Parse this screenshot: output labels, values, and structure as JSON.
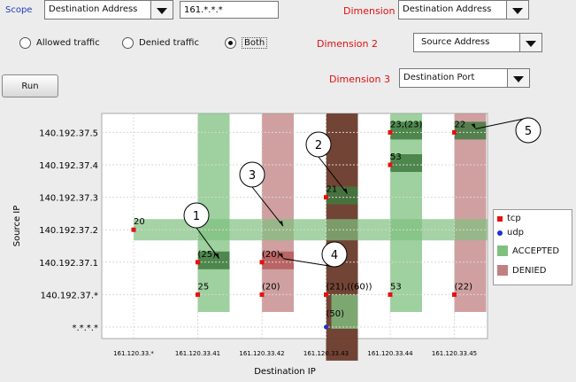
{
  "controls": {
    "scope_label": "Scope",
    "scope_value": "Destination Address",
    "scope_filter": "161.*.*.*",
    "dimension1_label": "Dimension 1",
    "dimension1_value": "Destination Address",
    "dimension2_label": "Dimension 2",
    "dimension2_value": "Source Address",
    "dimension3_label": "Dimension 3",
    "dimension3_value": "Destination Port",
    "radio_allowed": "Allowed traffic",
    "radio_denied": "Denied traffic",
    "radio_both": "Both",
    "run_label": "Run"
  },
  "legend": {
    "tcp": "tcp",
    "udp": "udp",
    "accepted": "ACCEPTED",
    "denied": "DENIED"
  },
  "colors": {
    "tcp": "#e81010",
    "udp": "#2030d0",
    "accepted": "#7fc07f",
    "denied": "#c08080",
    "dark_accepted": "#3f7a3f",
    "dark_denied": "#6a3a2a"
  },
  "chart_data": {
    "type": "scatter",
    "title": "",
    "xlabel": "Destination IP",
    "ylabel": "Source IP",
    "x_categories": [
      "161.120.33.*",
      "161.120.33.41",
      "161.120.33.42",
      "161.120.33.43",
      "161.120.33.44",
      "161.120.33.45"
    ],
    "y_categories": [
      "*.*.*.*",
      "140.192.37.*",
      "140.192.37.1",
      "140.192.37.2",
      "140.192.37.3",
      "140.192.37.4",
      "140.192.37.5"
    ],
    "bands": [
      {
        "axis": "x",
        "category": "161.120.33.41",
        "status": "accepted"
      },
      {
        "axis": "x",
        "category": "161.120.33.42",
        "status": "denied"
      },
      {
        "axis": "x",
        "category": "161.120.33.43",
        "status": "denied-dark"
      },
      {
        "axis": "x",
        "category": "161.120.33.44",
        "status": "accepted"
      },
      {
        "axis": "x",
        "category": "161.120.33.45",
        "status": "denied"
      },
      {
        "axis": "y",
        "category": "140.192.37.2",
        "status": "accepted"
      }
    ],
    "points": [
      {
        "x": "161.120.33.*",
        "y": "140.192.37.2",
        "label": "20",
        "protocol": "tcp"
      },
      {
        "x": "161.120.33.41",
        "y": "140.192.37.1",
        "label": "(25)",
        "protocol": "tcp"
      },
      {
        "x": "161.120.33.41",
        "y": "140.192.37.*",
        "label": "25",
        "protocol": "tcp"
      },
      {
        "x": "161.120.33.42",
        "y": "140.192.37.1",
        "label": "(20)",
        "protocol": "tcp"
      },
      {
        "x": "161.120.33.42",
        "y": "140.192.37.*",
        "label": "(20)",
        "protocol": "tcp"
      },
      {
        "x": "161.120.33.43",
        "y": "140.192.37.3",
        "label": "21",
        "protocol": "tcp"
      },
      {
        "x": "161.120.33.43",
        "y": "140.192.37.*",
        "label": "(21),((60))",
        "protocol": "tcp"
      },
      {
        "x": "161.120.33.43",
        "y": "*.*.*.*",
        "label": "(50)",
        "protocol": "udp"
      },
      {
        "x": "161.120.33.44",
        "y": "140.192.37.5",
        "label": "23,(23)",
        "protocol": "tcp"
      },
      {
        "x": "161.120.33.44",
        "y": "140.192.37.4",
        "label": "53",
        "protocol": "tcp"
      },
      {
        "x": "161.120.33.44",
        "y": "140.192.37.*",
        "label": "53",
        "protocol": "tcp"
      },
      {
        "x": "161.120.33.45",
        "y": "140.192.37.5",
        "label": "22",
        "protocol": "tcp"
      },
      {
        "x": "161.120.33.45",
        "y": "140.192.37.*",
        "label": "(22)",
        "protocol": "tcp"
      }
    ],
    "cells": [
      {
        "x": "161.120.33.41",
        "y": "140.192.37.1",
        "status": "dark-accepted"
      },
      {
        "x": "161.120.33.42",
        "y": "140.192.37.1",
        "status": "dark-denied"
      },
      {
        "x": "161.120.33.43",
        "y": "140.192.37.3",
        "status": "dark-accepted"
      },
      {
        "x": "161.120.33.44",
        "y": "140.192.37.5",
        "status": "dark-accepted"
      },
      {
        "x": "161.120.33.44",
        "y": "140.192.37.4",
        "status": "dark-accepted"
      },
      {
        "x": "161.120.33.45",
        "y": "140.192.37.5",
        "status": "dark-accepted"
      }
    ],
    "callouts": [
      {
        "number": "1",
        "target_x": "161.120.33.41",
        "target_y": "140.192.37.1"
      },
      {
        "number": "2",
        "target_x": "161.120.33.43",
        "target_y": "140.192.37.3"
      },
      {
        "number": "3",
        "target_x": "161.120.33.42",
        "target_y": "140.192.37.2"
      },
      {
        "number": "4",
        "target_x": "161.120.33.42",
        "target_y": "140.192.37.1"
      },
      {
        "number": "5",
        "target_x": "161.120.33.45",
        "target_y": "140.192.37.5"
      }
    ],
    "grid": true,
    "legend_position": "right"
  }
}
